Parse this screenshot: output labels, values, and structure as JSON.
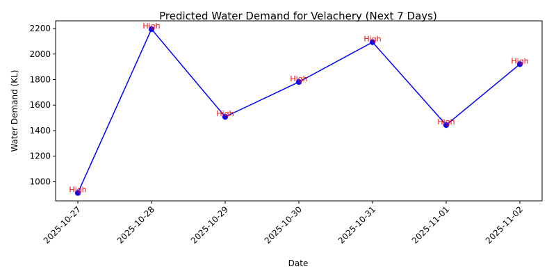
{
  "chart_data": {
    "type": "line",
    "title": "Predicted Water Demand for Velachery (Next 7 Days)",
    "xlabel": "Date",
    "ylabel": "Water Demand (KL)",
    "categories": [
      "2025-10-27",
      "2025-10-28",
      "2025-10-29",
      "2025-10-30",
      "2025-10-31",
      "2025-11-01",
      "2025-11-02"
    ],
    "series": [
      {
        "values": [
          912,
          2195,
          1508,
          1781,
          2093,
          1444,
          1921
        ],
        "color": "#0000ff",
        "annotations": [
          "High",
          "High",
          "High",
          "High",
          "High",
          "High",
          "High"
        ]
      }
    ],
    "ylim": [
      850,
      2260
    ],
    "yticks": [
      1000,
      1200,
      1400,
      1600,
      1800,
      2000,
      2200
    ],
    "annotation_color": "#ff0000",
    "grid": false,
    "legend": "none"
  }
}
